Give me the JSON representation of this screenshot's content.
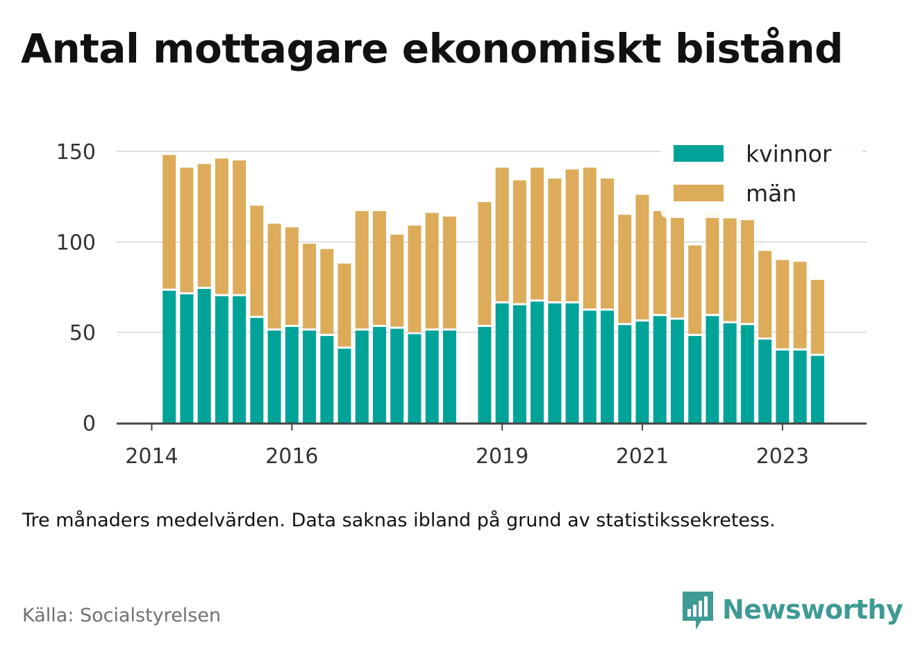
{
  "header": {
    "title": "Antal mottagare ekonomiskt bistånd"
  },
  "footer": {
    "note": "Tre månaders medelvärden. Data saknas ibland på grund av statistikssekretess.",
    "source": "Källa: Socialstyrelsen",
    "brand": "Newsworthy"
  },
  "colors": {
    "kvinnor": "#00a398",
    "man": "#dcac5a",
    "axis": "#444444",
    "grid": "#dddddd",
    "brand": "#3f9a93"
  },
  "chart_data": {
    "type": "bar",
    "stacked": true,
    "title": "Antal mottagare ekonomiskt bistånd",
    "xlabel": "",
    "ylabel": "",
    "ylim": [
      0,
      150
    ],
    "yticks": [
      0,
      50,
      100,
      150
    ],
    "xticks": [
      {
        "label": "2014",
        "x": 2014.0
      },
      {
        "label": "2016",
        "x": 2016.0
      },
      {
        "label": "2019",
        "x": 2019.0
      },
      {
        "label": "2021",
        "x": 2021.0
      },
      {
        "label": "2023",
        "x": 2023.0
      }
    ],
    "xlim": [
      2013.5,
      2024.2
    ],
    "grid": true,
    "legend_position": "top-right",
    "x": [
      2014.25,
      2014.5,
      2014.75,
      2015.0,
      2015.25,
      2015.5,
      2015.75,
      2016.0,
      2016.25,
      2016.5,
      2016.75,
      2017.0,
      2017.25,
      2017.5,
      2017.75,
      2018.0,
      2018.25,
      2018.75,
      2019.0,
      2019.25,
      2019.5,
      2019.75,
      2020.0,
      2020.25,
      2020.5,
      2020.75,
      2021.0,
      2021.25,
      2021.5,
      2021.75,
      2022.0,
      2022.25,
      2022.5,
      2022.75,
      2023.0,
      2023.25,
      2023.5
    ],
    "series": [
      {
        "name": "kvinnor",
        "values": [
          73,
          71,
          74,
          70,
          70,
          58,
          51,
          53,
          51,
          48,
          41,
          51,
          53,
          52,
          49,
          51,
          51,
          53,
          66,
          65,
          67,
          66,
          66,
          62,
          62,
          54,
          56,
          59,
          57,
          48,
          59,
          55,
          54,
          46,
          40,
          40,
          37
        ]
      },
      {
        "name": "män",
        "values": [
          75,
          70,
          69,
          76,
          75,
          62,
          59,
          55,
          48,
          48,
          47,
          66,
          64,
          52,
          60,
          65,
          63,
          69,
          75,
          69,
          74,
          69,
          74,
          79,
          73,
          61,
          70,
          58,
          57,
          50,
          57,
          58,
          58,
          49,
          50,
          49,
          42
        ]
      }
    ]
  }
}
